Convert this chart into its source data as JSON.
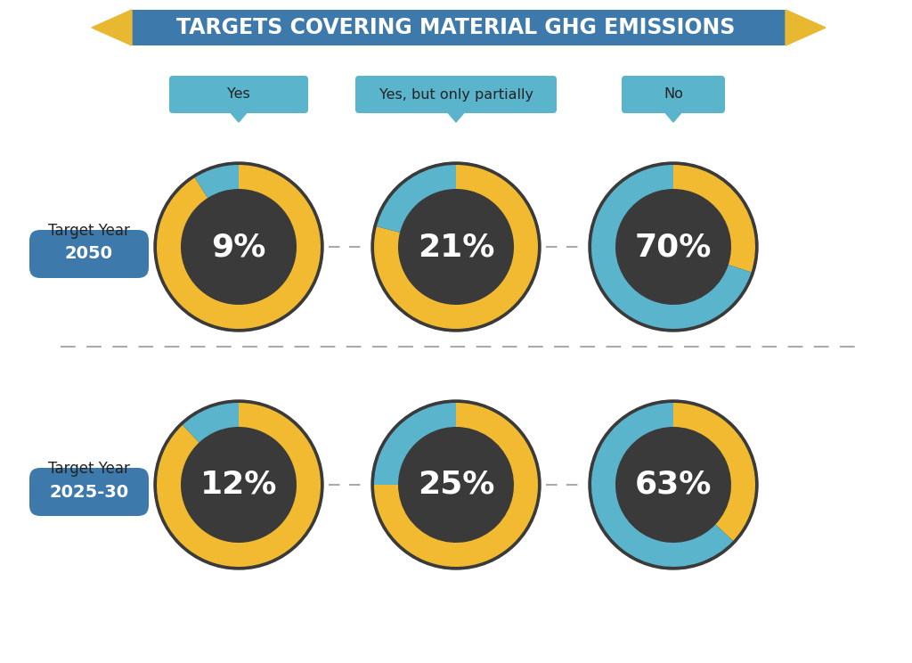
{
  "title": "TARGETS COVERING MATERIAL GHG EMISSIONS",
  "title_bg_color": "#3d7aab",
  "title_pencil_color": "#e8b831",
  "title_text_color": "#ffffff",
  "labels": [
    "Yes",
    "Yes, but only partially",
    "No"
  ],
  "label_bg_color": "#5ab4cc",
  "row1_year": "2050",
  "row2_year": "2025-30",
  "year_pill_color": "#3d7aab",
  "year_text_color": "#ffffff",
  "yellow": "#f2ba30",
  "blue": "#5ab4cc",
  "dark": "#3a3a3a",
  "row1_values": [
    [
      91,
      9
    ],
    [
      79,
      21
    ],
    [
      30,
      70
    ]
  ],
  "row1_colors": [
    [
      "#f2ba30",
      "#5ab4cc"
    ],
    [
      "#f2ba30",
      "#5ab4cc"
    ],
    [
      "#f2ba30",
      "#5ab4cc"
    ]
  ],
  "row2_values": [
    [
      88,
      12
    ],
    [
      75,
      25
    ],
    [
      37,
      63
    ]
  ],
  "row2_colors": [
    [
      "#f2ba30",
      "#5ab4cc"
    ],
    [
      "#f2ba30",
      "#5ab4cc"
    ],
    [
      "#f2ba30",
      "#5ab4cc"
    ]
  ],
  "row1_pcts": [
    "9%",
    "21%",
    "70%"
  ],
  "row2_pcts": [
    "12%",
    "25%",
    "63%"
  ],
  "bg_color": "#ffffff",
  "dashed_color": "#aaaaaa",
  "outer_ring_color": "#3a3a3a",
  "inner_circle_color": "#3a3a3a"
}
